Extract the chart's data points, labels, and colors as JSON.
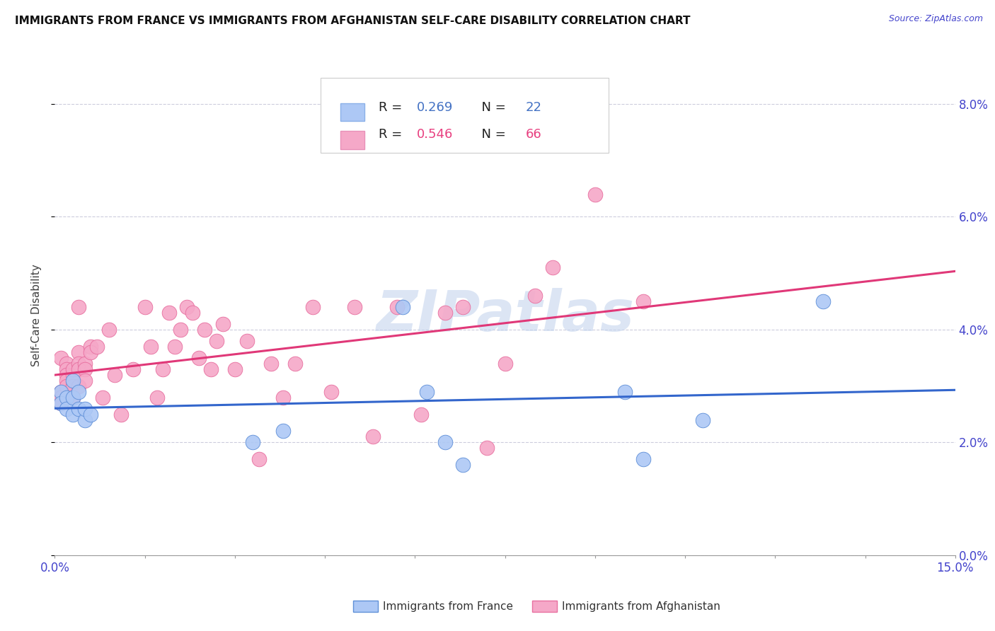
{
  "title": "IMMIGRANTS FROM FRANCE VS IMMIGRANTS FROM AFGHANISTAN SELF-CARE DISABILITY CORRELATION CHART",
  "source": "Source: ZipAtlas.com",
  "ylabel": "Self-Care Disability",
  "legend_france": "Immigrants from France",
  "legend_afghanistan": "Immigrants from Afghanistan",
  "legend_r_france": "R = 0.269",
  "legend_n_france": "N = 22",
  "legend_r_afghanistan": "R = 0.546",
  "legend_n_afghanistan": "N = 66",
  "color_france_fill": "#adc8f5",
  "color_afghanistan_fill": "#f5a8c8",
  "color_france_edge": "#6090d8",
  "color_afghanistan_edge": "#e870a0",
  "color_france_line": "#3366cc",
  "color_afghanistan_line": "#e03878",
  "color_legend_blue": "#4472c4",
  "color_legend_pink": "#e84080",
  "watermark_color": "#c5d5ee",
  "x_min": 0.0,
  "x_max": 0.15,
  "y_min": 0.0,
  "y_max": 0.085,
  "france_x": [
    0.001,
    0.001,
    0.002,
    0.002,
    0.003,
    0.003,
    0.003,
    0.004,
    0.004,
    0.005,
    0.005,
    0.006,
    0.033,
    0.038,
    0.058,
    0.062,
    0.065,
    0.068,
    0.095,
    0.098,
    0.108,
    0.128
  ],
  "france_y": [
    0.029,
    0.027,
    0.028,
    0.026,
    0.031,
    0.028,
    0.025,
    0.029,
    0.026,
    0.024,
    0.026,
    0.025,
    0.02,
    0.022,
    0.044,
    0.029,
    0.02,
    0.016,
    0.029,
    0.017,
    0.024,
    0.045
  ],
  "afghanistan_x": [
    0.001,
    0.001,
    0.001,
    0.001,
    0.001,
    0.002,
    0.002,
    0.002,
    0.002,
    0.002,
    0.003,
    0.003,
    0.003,
    0.003,
    0.003,
    0.003,
    0.004,
    0.004,
    0.004,
    0.004,
    0.004,
    0.005,
    0.005,
    0.005,
    0.006,
    0.006,
    0.007,
    0.008,
    0.009,
    0.01,
    0.011,
    0.013,
    0.015,
    0.016,
    0.017,
    0.018,
    0.019,
    0.02,
    0.021,
    0.022,
    0.023,
    0.024,
    0.025,
    0.026,
    0.027,
    0.028,
    0.03,
    0.032,
    0.034,
    0.036,
    0.038,
    0.04,
    0.043,
    0.046,
    0.05,
    0.053,
    0.057,
    0.061,
    0.065,
    0.068,
    0.072,
    0.075,
    0.08,
    0.083,
    0.09,
    0.098
  ],
  "afghanistan_y": [
    0.029,
    0.028,
    0.028,
    0.027,
    0.035,
    0.034,
    0.033,
    0.032,
    0.031,
    0.03,
    0.028,
    0.03,
    0.032,
    0.033,
    0.03,
    0.028,
    0.044,
    0.036,
    0.034,
    0.033,
    0.03,
    0.034,
    0.033,
    0.031,
    0.037,
    0.036,
    0.037,
    0.028,
    0.04,
    0.032,
    0.025,
    0.033,
    0.044,
    0.037,
    0.028,
    0.033,
    0.043,
    0.037,
    0.04,
    0.044,
    0.043,
    0.035,
    0.04,
    0.033,
    0.038,
    0.041,
    0.033,
    0.038,
    0.017,
    0.034,
    0.028,
    0.034,
    0.044,
    0.029,
    0.044,
    0.021,
    0.044,
    0.025,
    0.043,
    0.044,
    0.019,
    0.034,
    0.046,
    0.051,
    0.064,
    0.045
  ]
}
